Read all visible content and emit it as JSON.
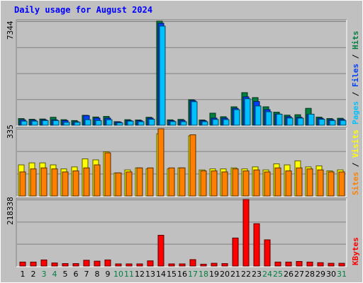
{
  "title": "Daily usage for August 2024",
  "colors": {
    "background": "#c0c0c0",
    "plot_bg": "#c0c0c0",
    "frame_dark": "#808080",
    "frame_light": "#ffffff",
    "title": "#0000ff",
    "pages": "#00c0ff",
    "files": "#0040ff",
    "hits": "#008040",
    "sites": "#ff8000",
    "visits": "#ffff00",
    "kbytes": "#ff0000",
    "day_normal": "#000000",
    "day_weekend": "#008040"
  },
  "chart_data": [
    {
      "type": "bar",
      "panel": "traffic",
      "ymax_label": "7344",
      "ylim": [
        0,
        7344
      ],
      "legend": [
        "Pages",
        "/",
        "Files",
        "/",
        "Hits"
      ],
      "series": [
        {
          "name": "Hits",
          "values": [
            470,
            420,
            440,
            560,
            390,
            330,
            700,
            580,
            620,
            250,
            390,
            370,
            560,
            7344,
            380,
            410,
            1800,
            370,
            850,
            600,
            1300,
            2300,
            1950,
            1300,
            920,
            710,
            740,
            1190,
            570,
            470,
            490
          ]
        },
        {
          "name": "Files",
          "values": [
            380,
            360,
            380,
            380,
            330,
            250,
            680,
            500,
            500,
            230,
            330,
            320,
            500,
            7200,
            320,
            340,
            1740,
            320,
            500,
            500,
            1190,
            2000,
            1670,
            1100,
            790,
            600,
            560,
            750,
            490,
            400,
            410
          ]
        },
        {
          "name": "Pages",
          "values": [
            290,
            290,
            330,
            330,
            210,
            210,
            390,
            330,
            390,
            170,
            290,
            250,
            420,
            7000,
            260,
            250,
            1660,
            250,
            410,
            400,
            1100,
            1870,
            1360,
            950,
            780,
            510,
            500,
            780,
            420,
            330,
            340
          ]
        }
      ]
    },
    {
      "type": "bar",
      "panel": "visitors",
      "ymax_label": "335",
      "ylim": [
        0,
        335
      ],
      "legend": [
        "Sites",
        "/",
        "Visits"
      ],
      "series": [
        {
          "name": "Visits",
          "values": [
            155,
            165,
            165,
            155,
            135,
            145,
            185,
            180,
            220,
            115,
            130,
            140,
            135,
            310,
            135,
            140,
            300,
            130,
            135,
            135,
            140,
            135,
            145,
            130,
            160,
            155,
            175,
            145,
            150,
            125,
            130
          ]
        },
        {
          "name": "Sites",
          "values": [
            120,
            135,
            140,
            135,
            120,
            125,
            140,
            155,
            215,
            115,
            120,
            140,
            140,
            335,
            140,
            140,
            305,
            125,
            125,
            120,
            135,
            125,
            130,
            120,
            140,
            125,
            140,
            135,
            130,
            120,
            120
          ]
        }
      ]
    },
    {
      "type": "bar",
      "panel": "kbytes",
      "ymax_label": "218338",
      "ylim": [
        0,
        218338
      ],
      "legend": [
        "KBytes"
      ],
      "series": [
        {
          "name": "KBytes",
          "values": [
            13000,
            13000,
            20000,
            10000,
            8000,
            8000,
            19000,
            16000,
            20000,
            7000,
            7000,
            7000,
            17000,
            101000,
            7000,
            7000,
            21000,
            6000,
            9000,
            8000,
            92000,
            218338,
            139000,
            86000,
            13000,
            13000,
            15000,
            13000,
            11000,
            9000,
            9000
          ]
        }
      ]
    }
  ],
  "days": [
    "1",
    "2",
    "3",
    "4",
    "5",
    "6",
    "7",
    "8",
    "9",
    "10",
    "11",
    "12",
    "13",
    "14",
    "15",
    "16",
    "17",
    "18",
    "19",
    "20",
    "21",
    "22",
    "23",
    "24",
    "25",
    "26",
    "27",
    "28",
    "29",
    "30",
    "31"
  ],
  "weekend_days": [
    "3",
    "4",
    "10",
    "11",
    "17",
    "18",
    "24",
    "25",
    "31"
  ]
}
